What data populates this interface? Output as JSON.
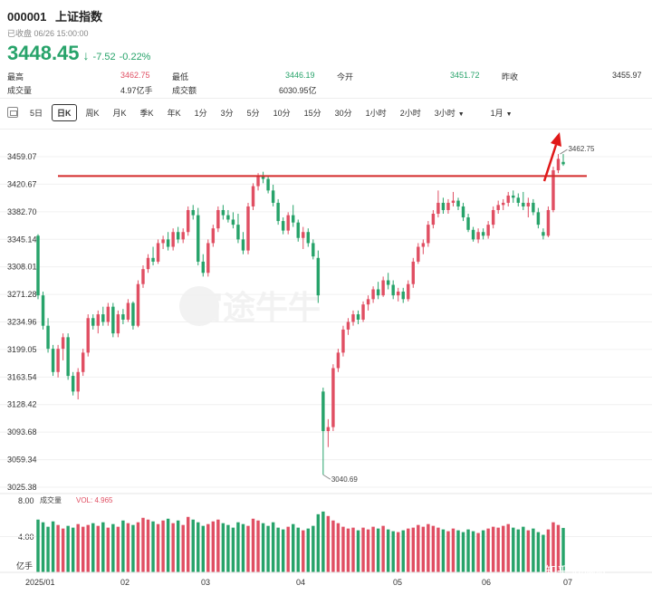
{
  "header": {
    "code": "000001",
    "name": "上证指数",
    "status": "已收盘 06/26 15:00:00",
    "price": "3448.45",
    "change": "-7.52",
    "change_pct": "-0.22%"
  },
  "stats": [
    {
      "label": "最高",
      "value": "3462.75",
      "value_color": "#e04f63"
    },
    {
      "label": "最低",
      "value": "3446.19",
      "value_color": "#27a36a"
    },
    {
      "label": "今开",
      "value": "3451.72",
      "value_color": "#27a36a"
    },
    {
      "label": "昨收",
      "value": "3455.97",
      "value_color": "#333333"
    },
    {
      "label": "成交量",
      "value": "4.97亿手",
      "value_color": "#333333"
    },
    {
      "label": "成交额",
      "value": "6030.95亿",
      "value_color": "#333333"
    }
  ],
  "toolbar": {
    "tabs": [
      "5日",
      "日K",
      "周K",
      "月K",
      "季K",
      "年K",
      "1分",
      "3分",
      "5分",
      "10分",
      "15分",
      "30分",
      "1小时",
      "2小时",
      "3小时",
      "1月"
    ],
    "active": "日K"
  },
  "axis": {
    "y_labels": [
      "3459.07",
      "3420.67",
      "3382.70",
      "3345.14",
      "3308.01",
      "3271.28",
      "3234.96",
      "3199.05",
      "3163.54",
      "3128.42",
      "3093.68",
      "3059.34",
      "3025.38"
    ],
    "x_labels": [
      "2025/01",
      "02",
      "03",
      "04",
      "05",
      "06",
      "07"
    ],
    "vol_labels": [
      "8.00",
      "4.00",
      "亿手"
    ]
  },
  "annotations": {
    "high": "3462.75",
    "low": "3040.69",
    "resistance": 3432
  },
  "volume": {
    "title": "成交量",
    "value_label": "VOL: 4.965"
  },
  "watermark": "富途牛牛",
  "credit": "知乎 @网叔",
  "colors": {
    "up": "#e04f63",
    "down": "#27a36a",
    "line": "#d42a2a",
    "arrow": "#e01818"
  },
  "chart_data": {
    "type": "candlestick",
    "ylim": [
      3025.38,
      3470
    ],
    "candles": [
      [
        3350,
        3352,
        3265,
        3270
      ],
      [
        3270,
        3275,
        3225,
        3230
      ],
      [
        3230,
        3240,
        3195,
        3200
      ],
      [
        3200,
        3205,
        3165,
        3170
      ],
      [
        3170,
        3205,
        3163,
        3200
      ],
      [
        3200,
        3220,
        3185,
        3215
      ],
      [
        3215,
        3220,
        3160,
        3165
      ],
      [
        3165,
        3170,
        3140,
        3145
      ],
      [
        3145,
        3175,
        3135,
        3170
      ],
      [
        3170,
        3200,
        3165,
        3195
      ],
      [
        3195,
        3245,
        3190,
        3240
      ],
      [
        3240,
        3245,
        3225,
        3230
      ],
      [
        3230,
        3250,
        3220,
        3245
      ],
      [
        3245,
        3255,
        3230,
        3235
      ],
      [
        3235,
        3260,
        3230,
        3255
      ],
      [
        3255,
        3260,
        3215,
        3220
      ],
      [
        3220,
        3250,
        3215,
        3245
      ],
      [
        3245,
        3252,
        3232,
        3238
      ],
      [
        3238,
        3265,
        3235,
        3260
      ],
      [
        3260,
        3262,
        3225,
        3230
      ],
      [
        3230,
        3290,
        3228,
        3285
      ],
      [
        3285,
        3310,
        3280,
        3305
      ],
      [
        3305,
        3325,
        3300,
        3320
      ],
      [
        3320,
        3335,
        3310,
        3315
      ],
      [
        3315,
        3345,
        3312,
        3340
      ],
      [
        3340,
        3350,
        3332,
        3345
      ],
      [
        3345,
        3355,
        3330,
        3335
      ],
      [
        3335,
        3360,
        3330,
        3355
      ],
      [
        3355,
        3362,
        3340,
        3345
      ],
      [
        3345,
        3360,
        3340,
        3355
      ],
      [
        3355,
        3390,
        3350,
        3385
      ],
      [
        3385,
        3392,
        3372,
        3378
      ],
      [
        3378,
        3388,
        3310,
        3315
      ],
      [
        3315,
        3325,
        3295,
        3300
      ],
      [
        3300,
        3345,
        3295,
        3340
      ],
      [
        3340,
        3365,
        3335,
        3360
      ],
      [
        3360,
        3390,
        3355,
        3385
      ],
      [
        3385,
        3392,
        3372,
        3378
      ],
      [
        3378,
        3385,
        3368,
        3372
      ],
      [
        3372,
        3382,
        3360,
        3365
      ],
      [
        3365,
        3380,
        3340,
        3345
      ],
      [
        3345,
        3355,
        3325,
        3330
      ],
      [
        3330,
        3395,
        3325,
        3390
      ],
      [
        3390,
        3422,
        3385,
        3418
      ],
      [
        3418,
        3436,
        3412,
        3432
      ],
      [
        3432,
        3438,
        3422,
        3428
      ],
      [
        3428,
        3432,
        3408,
        3412
      ],
      [
        3412,
        3420,
        3390,
        3395
      ],
      [
        3395,
        3400,
        3365,
        3370
      ],
      [
        3370,
        3375,
        3352,
        3357
      ],
      [
        3357,
        3382,
        3352,
        3378
      ],
      [
        3378,
        3392,
        3362,
        3368
      ],
      [
        3368,
        3372,
        3342,
        3347
      ],
      [
        3347,
        3362,
        3332,
        3355
      ],
      [
        3355,
        3360,
        3335,
        3340
      ],
      [
        3340,
        3345,
        3318,
        3322
      ],
      [
        3320,
        3330,
        3260,
        3270
      ],
      [
        3145,
        3150,
        3040.69,
        3095
      ],
      [
        3095,
        3110,
        3075,
        3100
      ],
      [
        3100,
        3180,
        3095,
        3175
      ],
      [
        3175,
        3200,
        3170,
        3195
      ],
      [
        3195,
        3230,
        3190,
        3225
      ],
      [
        3225,
        3240,
        3218,
        3235
      ],
      [
        3235,
        3250,
        3230,
        3245
      ],
      [
        3245,
        3250,
        3232,
        3238
      ],
      [
        3238,
        3262,
        3235,
        3258
      ],
      [
        3258,
        3270,
        3250,
        3265
      ],
      [
        3265,
        3282,
        3260,
        3278
      ],
      [
        3278,
        3288,
        3265,
        3270
      ],
      [
        3270,
        3295,
        3268,
        3290
      ],
      [
        3290,
        3300,
        3278,
        3284
      ],
      [
        3284,
        3290,
        3265,
        3270
      ],
      [
        3270,
        3280,
        3262,
        3275
      ],
      [
        3275,
        3280,
        3260,
        3265
      ],
      [
        3265,
        3290,
        3262,
        3285
      ],
      [
        3285,
        3320,
        3280,
        3315
      ],
      [
        3315,
        3340,
        3312,
        3335
      ],
      [
        3335,
        3345,
        3325,
        3340
      ],
      [
        3340,
        3370,
        3335,
        3365
      ],
      [
        3365,
        3385,
        3360,
        3380
      ],
      [
        3380,
        3412,
        3375,
        3395
      ],
      [
        3395,
        3402,
        3380,
        3385
      ],
      [
        3385,
        3400,
        3380,
        3395
      ],
      [
        3395,
        3410,
        3390,
        3398
      ],
      [
        3398,
        3402,
        3385,
        3390
      ],
      [
        3390,
        3395,
        3370,
        3375
      ],
      [
        3375,
        3380,
        3355,
        3358
      ],
      [
        3358,
        3362,
        3342,
        3345
      ],
      [
        3345,
        3360,
        3340,
        3355
      ],
      [
        3355,
        3360,
        3345,
        3350
      ],
      [
        3350,
        3370,
        3346,
        3365
      ],
      [
        3365,
        3390,
        3360,
        3385
      ],
      [
        3385,
        3398,
        3380,
        3392
      ],
      [
        3392,
        3400,
        3385,
        3395
      ],
      [
        3395,
        3410,
        3390,
        3405
      ],
      [
        3405,
        3412,
        3395,
        3402
      ],
      [
        3402,
        3408,
        3390,
        3395
      ],
      [
        3395,
        3410,
        3385,
        3390
      ],
      [
        3390,
        3402,
        3375,
        3395
      ],
      [
        3395,
        3400,
        3378,
        3382
      ],
      [
        3382,
        3388,
        3360,
        3365
      ],
      [
        3355,
        3360,
        3345,
        3350
      ],
      [
        3350,
        3390,
        3348,
        3385
      ],
      [
        3385,
        3445,
        3382,
        3440
      ],
      [
        3440,
        3462.75,
        3436,
        3456
      ],
      [
        3451.72,
        3462.75,
        3446.19,
        3448.45
      ]
    ],
    "volume": [
      5.9,
      5.6,
      5.1,
      5.7,
      5.3,
      4.9,
      5.2,
      5.0,
      5.4,
      5.1,
      5.3,
      5.5,
      5.2,
      5.6,
      5.0,
      5.4,
      5.1,
      5.8,
      5.5,
      5.3,
      5.6,
      6.1,
      5.9,
      5.7,
      5.4,
      5.8,
      6.0,
      5.5,
      5.8,
      5.3,
      6.2,
      5.9,
      5.6,
      5.2,
      5.4,
      5.7,
      5.9,
      5.5,
      5.3,
      5.0,
      5.6,
      5.4,
      5.2,
      6.0,
      5.8,
      5.5,
      5.2,
      5.6,
      5.0,
      4.8,
      5.1,
      5.4,
      5.0,
      4.7,
      4.9,
      5.2,
      6.5,
      6.8,
      6.3,
      5.8,
      5.5,
      5.1,
      4.9,
      5.0,
      4.7,
      5.0,
      4.8,
      5.1,
      4.9,
      5.2,
      4.8,
      4.6,
      4.5,
      4.7,
      4.9,
      5.0,
      5.3,
      5.1,
      5.4,
      5.2,
      5.0,
      4.8,
      4.6,
      4.9,
      4.7,
      4.5,
      4.8,
      4.6,
      4.4,
      4.7,
      4.9,
      5.1,
      5.0,
      5.2,
      5.4,
      5.0,
      4.8,
      5.1,
      4.7,
      4.9,
      4.5,
      4.2,
      4.8,
      5.6,
      5.3,
      4.97
    ]
  }
}
